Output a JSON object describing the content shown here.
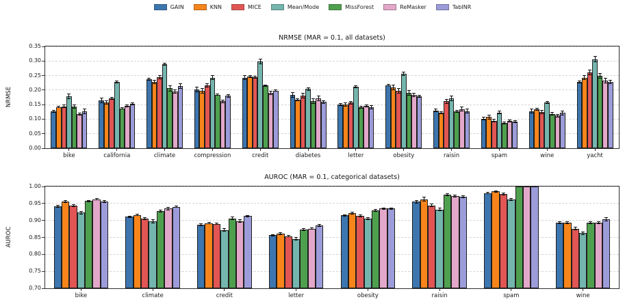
{
  "legend": {
    "position": "top-center",
    "items": [
      {
        "label": "GAIN",
        "color": "#3D76AF"
      },
      {
        "label": "KNN",
        "color": "#F8851B"
      },
      {
        "label": "MICE",
        "color": "#E15654"
      },
      {
        "label": "Mean/Mode",
        "color": "#74B6AE"
      },
      {
        "label": "MissForest",
        "color": "#4FA04E"
      },
      {
        "label": "ReMasker",
        "color": "#E3A8C9"
      },
      {
        "label": "TabINR",
        "color": "#9C9CDB"
      }
    ]
  },
  "chart_data": [
    {
      "type": "bar",
      "title": "NRMSE (MAR = 0.1, all datasets)",
      "ylabel": "NRMSE",
      "xlabel": "",
      "ylim": [
        0.0,
        0.35
      ],
      "yticks": [
        0.0,
        0.05,
        0.1,
        0.15,
        0.2,
        0.25,
        0.3,
        0.35
      ],
      "grid": "dashed-horizontal",
      "error_bars": true,
      "categories": [
        "bike",
        "california",
        "climate",
        "compression",
        "credit",
        "diabetes",
        "letter",
        "obesity",
        "raisin",
        "spam",
        "wine",
        "yacht"
      ],
      "series": [
        {
          "name": "GAIN",
          "color": "#3D76AF",
          "values": [
            0.127,
            0.164,
            0.237,
            0.202,
            0.243,
            0.183,
            0.15,
            0.217,
            0.13,
            0.102,
            0.128,
            0.228
          ],
          "errors": [
            0.003,
            0.008,
            0.004,
            0.008,
            0.006,
            0.008,
            0.004,
            0.003,
            0.005,
            0.004,
            0.006,
            0.004
          ]
        },
        {
          "name": "KNN",
          "color": "#F8851B",
          "values": [
            0.142,
            0.157,
            0.228,
            0.197,
            0.247,
            0.167,
            0.15,
            0.209,
            0.122,
            0.107,
            0.134,
            0.243
          ],
          "errors": [
            0.003,
            0.006,
            0.006,
            0.008,
            0.003,
            0.004,
            0.006,
            0.008,
            0.004,
            0.006,
            0.004,
            0.008
          ]
        },
        {
          "name": "MICE",
          "color": "#E15654",
          "values": [
            0.144,
            0.171,
            0.244,
            0.216,
            0.244,
            0.181,
            0.157,
            0.198,
            0.161,
            0.095,
            0.125,
            0.26
          ],
          "errors": [
            0.004,
            0.004,
            0.005,
            0.006,
            0.004,
            0.008,
            0.005,
            0.008,
            0.008,
            0.005,
            0.006,
            0.008
          ]
        },
        {
          "name": "Mean/Mode",
          "color": "#74B6AE",
          "values": [
            0.178,
            0.228,
            0.289,
            0.243,
            0.299,
            0.204,
            0.212,
            0.256,
            0.172,
            0.123,
            0.157,
            0.306
          ],
          "errors": [
            0.008,
            0.003,
            0.004,
            0.006,
            0.008,
            0.005,
            0.004,
            0.007,
            0.008,
            0.004,
            0.004,
            0.01
          ]
        },
        {
          "name": "MissForest",
          "color": "#4FA04E",
          "values": [
            0.144,
            0.137,
            0.206,
            0.184,
            0.215,
            0.162,
            0.141,
            0.19,
            0.127,
            0.087,
            0.118,
            0.249
          ],
          "errors": [
            0.006,
            0.002,
            0.01,
            0.003,
            0.003,
            0.008,
            0.003,
            0.008,
            0.004,
            0.003,
            0.005,
            0.009
          ]
        },
        {
          "name": "ReMasker",
          "color": "#E3A8C9",
          "values": [
            0.117,
            0.145,
            0.196,
            0.161,
            0.19,
            0.172,
            0.146,
            0.183,
            0.135,
            0.094,
            0.112,
            0.233
          ],
          "errors": [
            0.004,
            0.003,
            0.006,
            0.004,
            0.006,
            0.008,
            0.004,
            0.005,
            0.007,
            0.004,
            0.004,
            0.008
          ]
        },
        {
          "name": "TabINR",
          "color": "#9C9CDB",
          "values": [
            0.127,
            0.153,
            0.214,
            0.18,
            0.198,
            0.159,
            0.14,
            0.178,
            0.128,
            0.092,
            0.121,
            0.228
          ],
          "errors": [
            0.008,
            0.003,
            0.008,
            0.005,
            0.003,
            0.004,
            0.006,
            0.004,
            0.006,
            0.003,
            0.006,
            0.005
          ]
        }
      ]
    },
    {
      "type": "bar",
      "title": "AUROC (MAR = 0.1, categorical datasets)",
      "ylabel": "AUROC",
      "xlabel": "",
      "ylim": [
        0.7,
        1.0
      ],
      "yticks": [
        0.7,
        0.75,
        0.8,
        0.85,
        0.9,
        0.95,
        1.0
      ],
      "grid": "dashed-horizontal",
      "error_bars": true,
      "categories": [
        "bike",
        "climate",
        "credit",
        "letter",
        "obesity",
        "raisin",
        "spam",
        "wine"
      ],
      "series": [
        {
          "name": "GAIN",
          "color": "#3D76AF",
          "values": [
            0.942,
            0.911,
            0.887,
            0.857,
            0.915,
            0.955,
            0.98,
            0.893
          ],
          "errors": [
            0.003,
            0.002,
            0.003,
            0.002,
            0.002,
            0.004,
            0.002,
            0.003
          ]
        },
        {
          "name": "KNN",
          "color": "#F8851B",
          "values": [
            0.955,
            0.916,
            0.892,
            0.861,
            0.921,
            0.962,
            0.985,
            0.893
          ],
          "errors": [
            0.003,
            0.002,
            0.002,
            0.003,
            0.003,
            0.006,
            0.002,
            0.003
          ]
        },
        {
          "name": "MICE",
          "color": "#E15654",
          "values": [
            0.943,
            0.906,
            0.89,
            0.854,
            0.913,
            0.944,
            0.977,
            0.876
          ],
          "errors": [
            0.003,
            0.003,
            0.002,
            0.002,
            0.003,
            0.004,
            0.003,
            0.004
          ]
        },
        {
          "name": "Mean/Mode",
          "color": "#74B6AE",
          "values": [
            0.923,
            0.898,
            0.872,
            0.845,
            0.905,
            0.932,
            0.962,
            0.863
          ],
          "errors": [
            0.004,
            0.005,
            0.004,
            0.004,
            0.003,
            0.004,
            0.003,
            0.004
          ]
        },
        {
          "name": "MissForest",
          "color": "#4FA04E",
          "values": [
            0.957,
            0.928,
            0.906,
            0.873,
            0.929,
            0.975,
            0.999,
            0.894
          ],
          "errors": [
            0.002,
            0.003,
            0.004,
            0.003,
            0.003,
            0.003,
            0.001,
            0.003
          ]
        },
        {
          "name": "ReMasker",
          "color": "#E3A8C9",
          "values": [
            0.962,
            0.935,
            0.898,
            0.876,
            0.935,
            0.972,
            0.999,
            0.894
          ],
          "errors": [
            0.002,
            0.004,
            0.004,
            0.002,
            0.002,
            0.003,
            0.001,
            0.003
          ]
        },
        {
          "name": "TabINR",
          "color": "#9C9CDB",
          "values": [
            0.956,
            0.94,
            0.913,
            0.885,
            0.935,
            0.97,
            0.999,
            0.903
          ],
          "errors": [
            0.003,
            0.002,
            0.002,
            0.003,
            0.002,
            0.003,
            0.001,
            0.005
          ]
        }
      ]
    }
  ]
}
